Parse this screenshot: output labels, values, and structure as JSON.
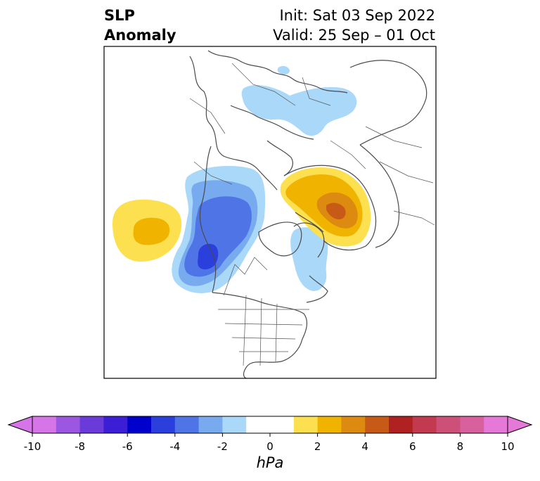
{
  "title": {
    "left_line1": "SLP",
    "left_line2": "Anomaly",
    "right_line1": "Init: Sat 03 Sep 2022",
    "right_line2": "Valid: 25 Sep – 01 Oct"
  },
  "colorbar": {
    "unit": "hPa",
    "ticks": [
      "-10",
      "-8",
      "-6",
      "-4",
      "-2",
      "0",
      "2",
      "4",
      "6",
      "8",
      "10"
    ],
    "range": [
      -10,
      10
    ],
    "step": 1,
    "extend": "both",
    "colors": [
      "#d675e8",
      "#9c57e0",
      "#6a3bd8",
      "#3c1ed6",
      "#0000cc",
      "#2a3fdc",
      "#4f74e6",
      "#78aaf0",
      "#aad8f8",
      "#ffffff",
      "#ffffff",
      "#fde050",
      "#f0b400",
      "#dd8a10",
      "#c85a18",
      "#b02222",
      "#c23a50",
      "#cc5078",
      "#d8609c",
      "#e678d8"
    ]
  }
}
